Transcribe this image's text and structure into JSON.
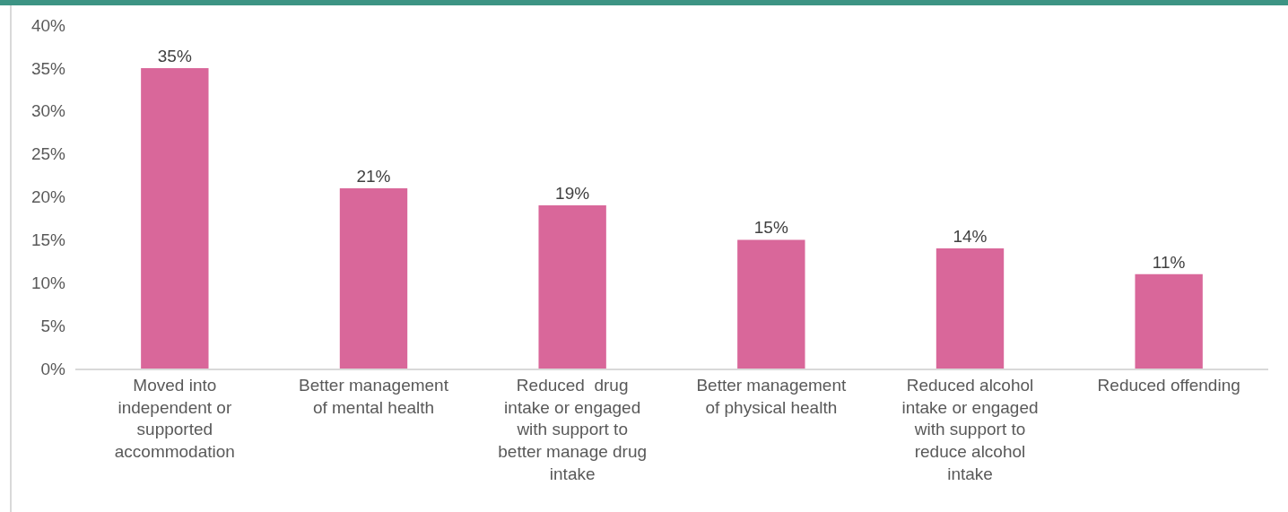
{
  "chart_data": {
    "type": "bar",
    "categories": [
      "Moved into independent or supported accommodation",
      "Better management of mental health",
      "Reduced  drug intake or engaged with support to better manage drug intake",
      "Better management of physical health",
      "Reduced alcohol intake or engaged with support to reduce alcohol intake",
      "Reduced offending"
    ],
    "values": [
      35,
      21,
      19,
      15,
      14,
      11
    ],
    "color": "#d9679a",
    "value_labels": [
      "35%",
      "21%",
      "19%",
      "15%",
      "14%",
      "11%"
    ],
    "ylim": [
      0,
      40
    ],
    "yticks": [
      {
        "value": 0,
        "label": "0%"
      },
      {
        "value": 5,
        "label": "5%"
      },
      {
        "value": 10,
        "label": "10%"
      },
      {
        "value": 15,
        "label": "15%"
      },
      {
        "value": 20,
        "label": "20%"
      },
      {
        "value": 25,
        "label": "25%"
      },
      {
        "value": 30,
        "label": "30%"
      },
      {
        "value": 35,
        "label": "35%"
      },
      {
        "value": 40,
        "label": "40%"
      }
    ],
    "grid": false
  }
}
